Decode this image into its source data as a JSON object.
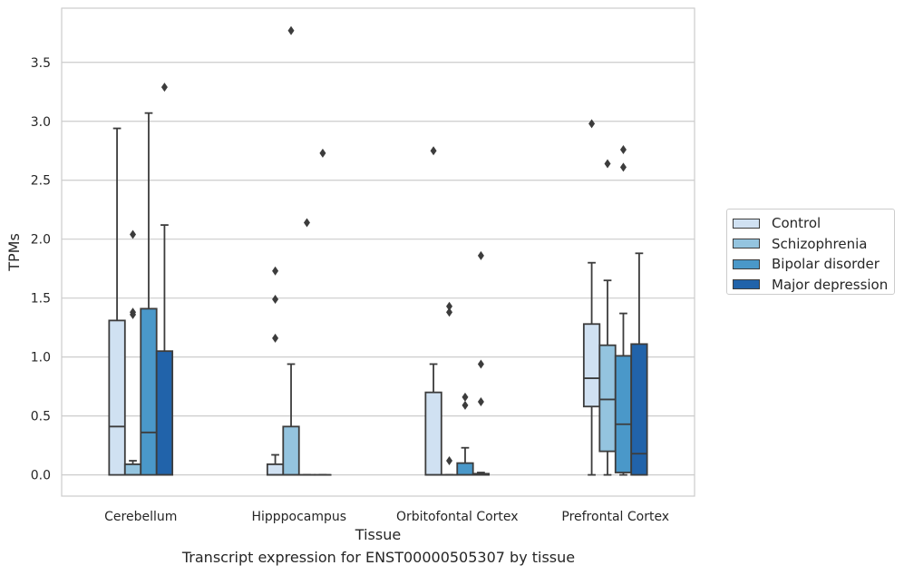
{
  "caption": "Transcript expression for ENST00000505307 by tissue",
  "chart_data": {
    "type": "box",
    "xlabel": "Tissue",
    "ylabel": "TPMs",
    "ylim": [
      -0.18,
      3.96
    ],
    "yticks": [
      0.0,
      0.5,
      1.0,
      1.5,
      2.0,
      2.5,
      3.0,
      3.5
    ],
    "ytick_labels": [
      "0.0",
      "0.5",
      "1.0",
      "1.5",
      "2.0",
      "2.5",
      "3.0",
      "3.5"
    ],
    "grid": "horizontal",
    "legend_position": "right",
    "categories": [
      "Cerebellum",
      "Hipppocampus",
      "Orbitofontal Cortex",
      "Prefrontal Cortex"
    ],
    "series": [
      {
        "name": "Control",
        "color": "#d0e1f2",
        "boxes": [
          {
            "min": 0.0,
            "q1": 0.0,
            "median": 0.41,
            "q3": 1.31,
            "max": 2.94,
            "outliers": []
          },
          {
            "min": 0.0,
            "q1": 0.0,
            "median": 0.0,
            "q3": 0.09,
            "max": 0.17,
            "outliers": [
              1.16,
              1.49,
              1.73
            ]
          },
          {
            "min": 0.0,
            "q1": 0.0,
            "median": 0.0,
            "q3": 0.7,
            "max": 0.94,
            "outliers": [
              2.75
            ]
          },
          {
            "min": 0.0,
            "q1": 0.58,
            "median": 0.82,
            "q3": 1.28,
            "max": 1.8,
            "outliers": [
              2.98
            ]
          }
        ]
      },
      {
        "name": "Schizophrenia",
        "color": "#94c4df",
        "boxes": [
          {
            "min": 0.0,
            "q1": 0.0,
            "median": 0.0,
            "q3": 0.09,
            "max": 0.12,
            "outliers": [
              1.36,
              1.38,
              2.04
            ]
          },
          {
            "min": 0.0,
            "q1": 0.0,
            "median": 0.0,
            "q3": 0.41,
            "max": 0.94,
            "outliers": [
              3.77
            ]
          },
          {
            "min": 0.0,
            "q1": 0.0,
            "median": 0.0,
            "q3": 0.0,
            "max": 0.0,
            "outliers": [
              0.12,
              1.38,
              1.43
            ]
          },
          {
            "min": 0.0,
            "q1": 0.2,
            "median": 0.64,
            "q3": 1.1,
            "max": 1.65,
            "outliers": [
              2.64
            ]
          }
        ]
      },
      {
        "name": "Bipolar disorder",
        "color": "#4a98c9",
        "boxes": [
          {
            "min": 0.0,
            "q1": 0.0,
            "median": 0.36,
            "q3": 1.41,
            "max": 3.07,
            "outliers": []
          },
          {
            "min": 0.0,
            "q1": 0.0,
            "median": 0.0,
            "q3": 0.0,
            "max": 0.0,
            "outliers": [
              2.14
            ]
          },
          {
            "min": 0.0,
            "q1": 0.0,
            "median": 0.0,
            "q3": 0.1,
            "max": 0.23,
            "outliers": [
              0.59,
              0.66
            ]
          },
          {
            "min": 0.0,
            "q1": 0.02,
            "median": 0.43,
            "q3": 1.01,
            "max": 1.37,
            "outliers": [
              2.61,
              2.76
            ]
          }
        ]
      },
      {
        "name": "Major depression",
        "color": "#2163aa",
        "boxes": [
          {
            "min": 0.0,
            "q1": 0.0,
            "median": 0.0,
            "q3": 1.05,
            "max": 2.12,
            "outliers": [
              3.29
            ]
          },
          {
            "min": 0.0,
            "q1": 0.0,
            "median": 0.0,
            "q3": 0.0,
            "max": 0.0,
            "outliers": [
              2.73
            ]
          },
          {
            "min": 0.0,
            "q1": 0.0,
            "median": 0.0,
            "q3": 0.01,
            "max": 0.02,
            "outliers": [
              0.62,
              0.94,
              1.86
            ]
          },
          {
            "min": 0.0,
            "q1": 0.0,
            "median": 0.18,
            "q3": 1.11,
            "max": 1.88,
            "outliers": []
          }
        ]
      }
    ]
  }
}
